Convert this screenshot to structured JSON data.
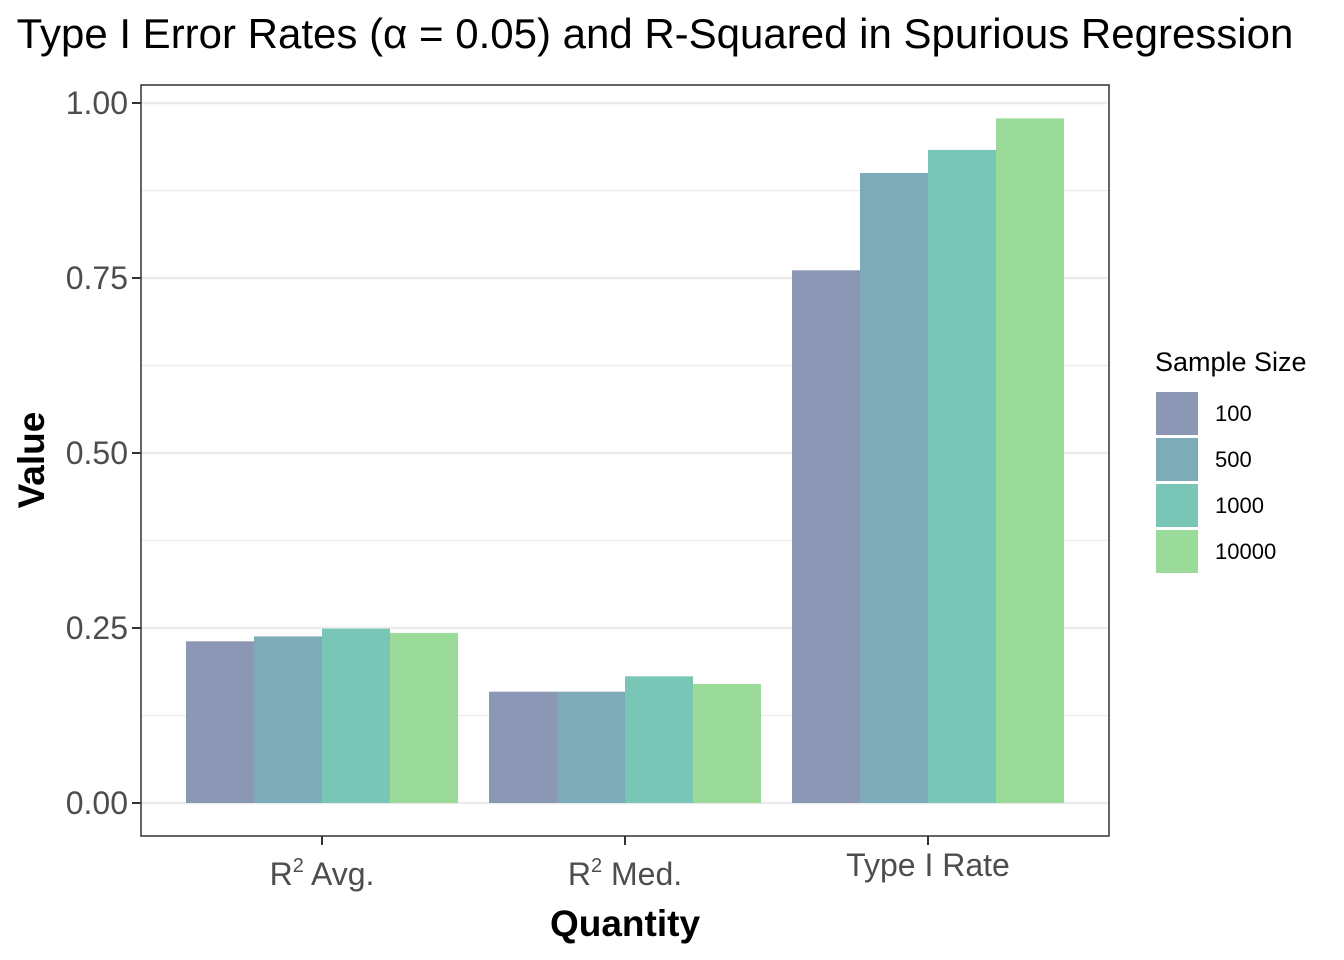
{
  "chart_data": {
    "type": "bar",
    "title": "Type I Error Rates (α = 0.05) and R-Squared in Spurious Regression",
    "xlabel": "Quantity",
    "ylabel": "Value",
    "categories": [
      {
        "base": "R",
        "sup": "2",
        "rest": " Avg."
      },
      {
        "base": "R",
        "sup": "2",
        "rest": " Med."
      },
      {
        "base": "Type I Rate",
        "sup": "",
        "rest": ""
      }
    ],
    "ylim": [
      0,
      1.05
    ],
    "yticks": [
      0,
      0.25,
      0.5,
      0.75,
      1
    ],
    "ytick_labels": [
      "0.00",
      "0.25",
      "0.50",
      "0.75",
      "1.00"
    ],
    "grid": true,
    "legend": {
      "title": "Sample Size",
      "position": "right"
    },
    "series": [
      {
        "name": "100",
        "color": "#8c97b6",
        "values": [
          0.231,
          0.159,
          0.761
        ]
      },
      {
        "name": "500",
        "color": "#7eabb8",
        "values": [
          0.238,
          0.159,
          0.9
        ]
      },
      {
        "name": "1000",
        "color": "#7ac6b6",
        "values": [
          0.249,
          0.181,
          0.933
        ]
      },
      {
        "name": "10000",
        "color": "#9adb9a",
        "values": [
          0.243,
          0.17,
          0.978
        ]
      }
    ]
  }
}
